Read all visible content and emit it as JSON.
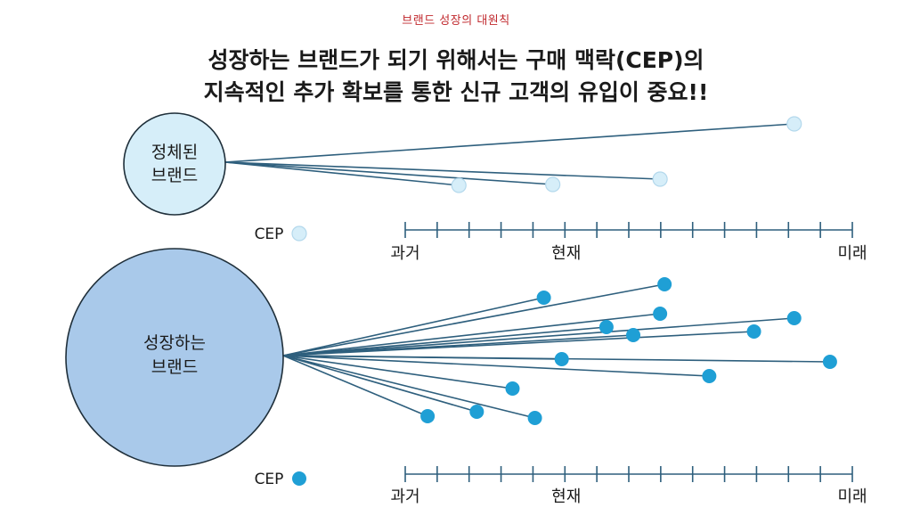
{
  "header": {
    "kicker": "브랜드 성장의 대원칙",
    "title_line1": "성장하는 브랜드가 되기 위해서는 구매 맥락(CEP)의",
    "title_line2": "지속적인 추가 확보를 통한 신규 고객의 유입이 중요!!"
  },
  "colors": {
    "line": "#2e5f7d",
    "stagnant_fill": "#d6eef9",
    "stagnant_dot": "#d6eef9",
    "stagnant_dot_stroke": "#b3d8ec",
    "growing_fill": "#a9c9ea",
    "growing_dot": "#1f9fd5",
    "circle_stroke": "#1f2f3a",
    "axis": "#2e5f7d"
  },
  "panels": [
    {
      "id": "stagnant",
      "brand_line1": "정체된",
      "brand_line2": "브랜드",
      "legend_label": "CEP",
      "timeline": {
        "past": "과거",
        "present": "현재",
        "future": "미래"
      },
      "ceps": [
        {
          "t": 0.87
        },
        {
          "t": 0.12
        },
        {
          "t": 0.33
        },
        {
          "t": 0.57
        }
      ]
    },
    {
      "id": "growing",
      "brand_line1": "성장하는",
      "brand_line2": "브랜드",
      "legend_label": "CEP",
      "timeline": {
        "past": "과거",
        "present": "현재",
        "future": "미래"
      },
      "ceps": [
        {
          "t": 0.31
        },
        {
          "t": 0.58
        },
        {
          "t": 0.57
        },
        {
          "t": 0.45
        },
        {
          "t": 0.87
        },
        {
          "t": 0.68
        },
        {
          "t": 0.78
        },
        {
          "t": 0.35
        },
        {
          "t": 0.95
        },
        {
          "t": 0.51
        },
        {
          "t": 0.24
        },
        {
          "t": 0.05
        },
        {
          "t": 0.16
        },
        {
          "t": 0.29
        }
      ]
    }
  ]
}
